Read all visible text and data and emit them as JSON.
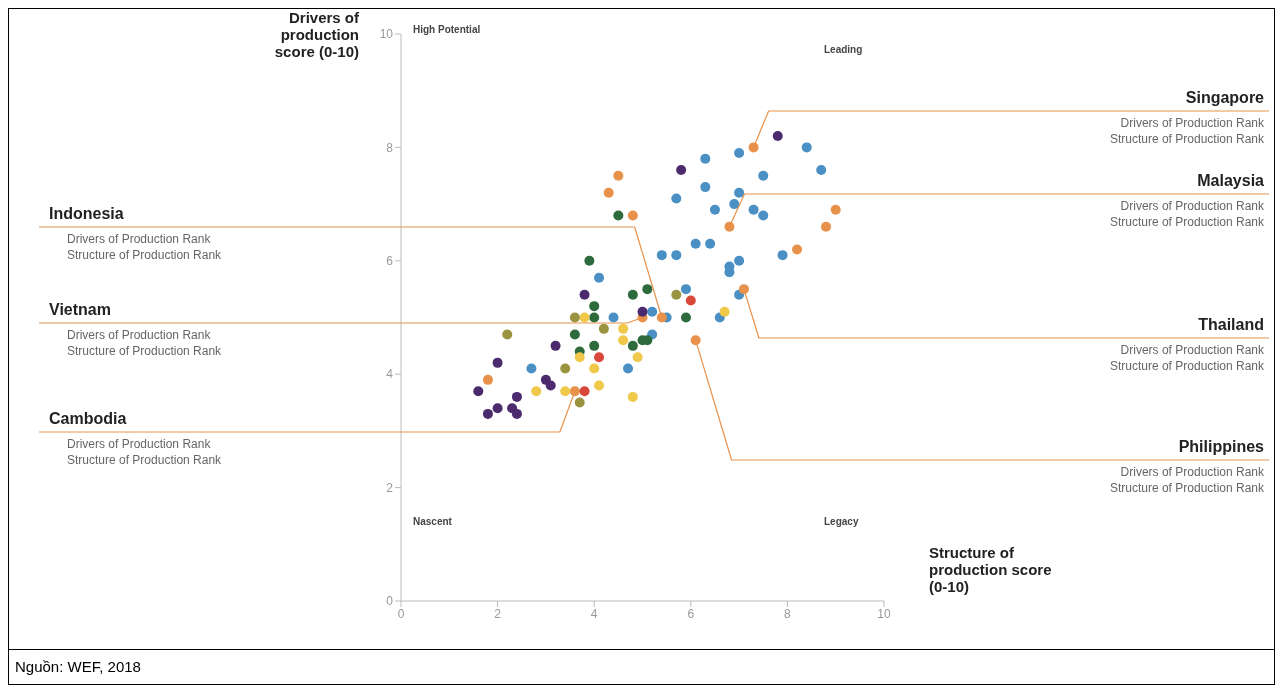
{
  "chart_data": {
    "type": "scatter",
    "xlabel": "Structure of production score (0-10)",
    "ylabel": "Drivers of production score (0-10)",
    "xlim": [
      0,
      10
    ],
    "xticks": [
      0,
      2,
      4,
      6,
      8,
      10
    ],
    "ylim": [
      0,
      10
    ],
    "yticks": [
      0,
      2,
      4,
      6,
      8,
      10
    ],
    "grid": false,
    "legend": false,
    "marker": "circle",
    "series": [
      {
        "color": "#4a90c4",
        "x": [
          6.3,
          7.0,
          8.4,
          8.7,
          7.5,
          5.7,
          6.3,
          7.0,
          6.5,
          6.9,
          7.3,
          7.5,
          6.1,
          6.4,
          5.4,
          5.7,
          7.9,
          6.8,
          7.0,
          6.8,
          7.0,
          5.9,
          5.2,
          4.4,
          5.5,
          6.6,
          4.1,
          2.7,
          4.7,
          5.2
        ],
        "values": [
          7.8,
          7.9,
          8.0,
          7.6,
          7.5,
          7.1,
          7.3,
          7.2,
          6.9,
          7.0,
          6.9,
          6.8,
          6.3,
          6.3,
          6.1,
          6.1,
          6.1,
          5.9,
          6.0,
          5.8,
          5.4,
          5.5,
          5.1,
          5.0,
          5.0,
          5.0,
          5.7,
          4.1,
          4.1,
          4.7
        ]
      },
      {
        "color": "#e8914a",
        "x": [
          4.5,
          4.3,
          4.8,
          7.3,
          6.8,
          9.0,
          8.8,
          8.2,
          7.1,
          5.0,
          5.4,
          6.1,
          1.8,
          3.6
        ],
        "values": [
          7.5,
          7.2,
          6.8,
          8.0,
          6.6,
          6.9,
          6.6,
          6.2,
          5.5,
          5.0,
          5.0,
          4.6,
          3.9,
          3.7
        ]
      },
      {
        "color": "#4b2a6e",
        "x": [
          5.8,
          7.8,
          3.8,
          5.0,
          3.2,
          2.0,
          1.6,
          2.4,
          1.8,
          2.0,
          2.3,
          2.4,
          3.0,
          3.1
        ],
        "values": [
          7.6,
          8.2,
          5.4,
          5.1,
          4.5,
          4.2,
          3.7,
          3.6,
          3.3,
          3.4,
          3.4,
          3.3,
          3.9,
          3.8
        ]
      },
      {
        "color": "#2e6b3c",
        "x": [
          4.5,
          3.9,
          5.1,
          4.8,
          4.0,
          4.0,
          5.9,
          3.6,
          3.7,
          4.0,
          4.8,
          5.0,
          5.1
        ],
        "values": [
          6.8,
          6.0,
          5.5,
          5.4,
          5.2,
          5.0,
          5.0,
          4.7,
          4.4,
          4.5,
          4.5,
          4.6,
          4.6
        ]
      },
      {
        "color": "#f0c84a",
        "x": [
          3.7,
          4.0,
          4.6,
          4.6,
          4.9,
          4.8,
          3.4,
          2.8,
          4.1,
          3.8,
          6.7
        ],
        "values": [
          4.3,
          4.1,
          4.8,
          4.6,
          4.3,
          3.6,
          3.7,
          3.7,
          3.8,
          5.0,
          5.1
        ]
      },
      {
        "color": "#d9473a",
        "x": [
          6.0,
          4.1,
          3.8
        ],
        "values": [
          5.3,
          4.3,
          3.7
        ]
      },
      {
        "color": "#9a9440",
        "x": [
          2.2,
          3.4,
          3.7,
          4.2,
          3.6,
          5.7
        ],
        "values": [
          4.7,
          4.1,
          3.5,
          4.8,
          5.0,
          5.4
        ]
      }
    ],
    "annotations": [
      "High Potential",
      "Leading",
      "Nascent",
      "Legacy",
      {
        "text": "Singapore",
        "x": 7.3,
        "y": 8.0
      },
      "Drivers of Production Rank",
      "Structure of Production Rank",
      {
        "text": "Malaysia",
        "x": 6.8,
        "y": 6.6
      },
      "Drivers of Production Rank",
      "Structure of Production Rank",
      {
        "text": "Thailand",
        "x": 7.1,
        "y": 5.5
      },
      "Drivers of Production Rank",
      "Structure of Production Rank",
      {
        "text": "Philippines",
        "x": 6.1,
        "y": 4.6
      },
      "Drivers of Production Rank",
      "Structure of Production Rank",
      {
        "text": "Indonesia",
        "x": 5.4,
        "y": 5.0
      },
      "Drivers of Production Rank",
      "Structure of Production Rank",
      {
        "text": "Vietnam",
        "x": 5.0,
        "y": 5.0
      },
      "Drivers of Production Rank",
      "Structure of Production Rank",
      {
        "text": "Cambodia",
        "x": 3.6,
        "y": 3.7
      },
      "Drivers of Production Rank",
      "Structure of Production Rank",
      "Nguồn: WEF, 2018"
    ]
  }
}
